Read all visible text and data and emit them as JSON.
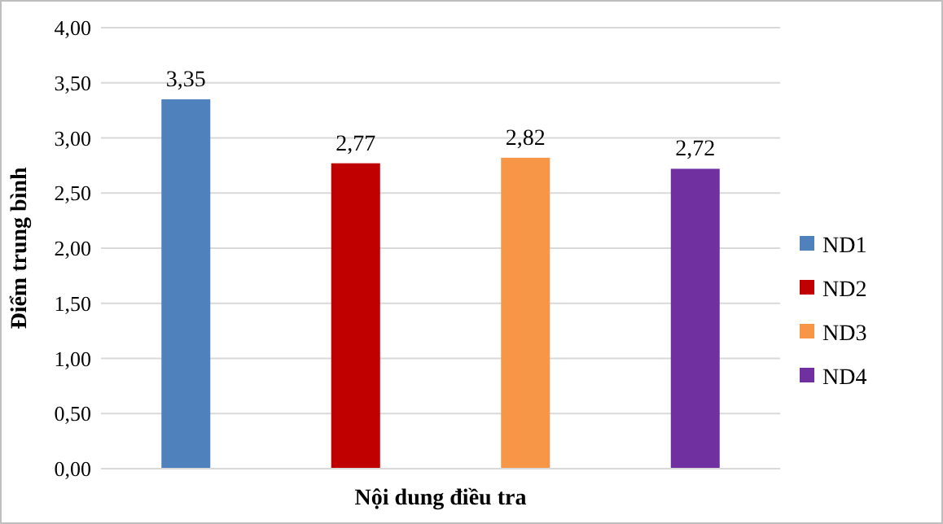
{
  "chart_data": {
    "type": "bar",
    "xlabel": "Nội dung điều tra",
    "ylabel": "Điểm trung bình",
    "categories": [
      null,
      null,
      null,
      null
    ],
    "series": [
      {
        "name": "ND1",
        "color": "#4f81bd",
        "values": [
          3.35,
          null,
          null,
          null
        ],
        "value_labels": [
          "3,35",
          null,
          null,
          null
        ]
      },
      {
        "name": "ND2",
        "color": "#c00000",
        "values": [
          null,
          2.77,
          null,
          null
        ],
        "value_labels": [
          null,
          "2,77",
          null,
          null
        ]
      },
      {
        "name": "ND3",
        "color": "#f79646",
        "values": [
          null,
          null,
          2.82,
          null
        ],
        "value_labels": [
          null,
          null,
          "2,82",
          null
        ]
      },
      {
        "name": "ND4",
        "color": "#7030a0",
        "values": [
          null,
          null,
          null,
          2.72
        ],
        "value_labels": [
          null,
          null,
          null,
          "2,72"
        ]
      }
    ],
    "ylim": [
      0,
      4
    ],
    "yticks": [
      {
        "value": 0,
        "label": "0,00"
      },
      {
        "value": 0.5,
        "label": "0,50"
      },
      {
        "value": 1,
        "label": "1,00"
      },
      {
        "value": 1.5,
        "label": "1,50"
      },
      {
        "value": 2,
        "label": "2,00"
      },
      {
        "value": 2.5,
        "label": "2,50"
      },
      {
        "value": 3,
        "label": "3,00"
      },
      {
        "value": 3.5,
        "label": "3,50"
      },
      {
        "value": 4,
        "label": "4,00"
      }
    ],
    "grid": "y",
    "legend": "right"
  }
}
